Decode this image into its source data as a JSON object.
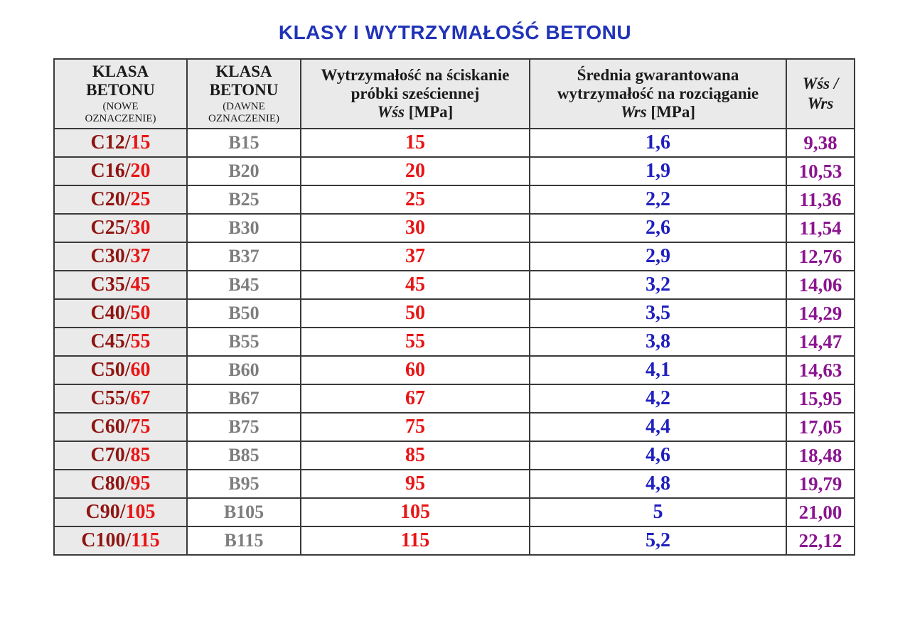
{
  "title": "KLASY I WYTRZYMAŁOŚĆ BETONU",
  "colors": {
    "title_blue": "#2133b8",
    "class_new_dark": "#8e1512",
    "value_red": "#e81414",
    "class_old_gray": "#7e7e7e",
    "value_blue": "#2020bf",
    "value_purple": "#8b1590",
    "header_bg": "#eaeaea",
    "grid_line": "#3a3a3a"
  },
  "table": {
    "headers": {
      "class_new": {
        "title": "KLASA BETONU",
        "subtitle": "(NOWE OZNACZENIE)"
      },
      "class_old": {
        "title": "KLASA BETONU",
        "subtitle": "(DAWNE OZNACZENIE)"
      },
      "wss": {
        "title": "Wytrzymałość na ściskanie próbki sześciennej",
        "symbol": "Wśs",
        "unit": "[MPa]"
      },
      "wrs": {
        "title": "Średnia gwarantowana wytrzymałość na rozciąganie",
        "symbol": "Wrs",
        "unit": "[MPa]"
      },
      "ratio": {
        "line1": "Wśs /",
        "line2": "Wrs"
      }
    },
    "rows": [
      {
        "new_prefix": "C12/",
        "new_suffix": "15",
        "old": "B15",
        "wss": "15",
        "wrs": "1,6",
        "ratio": "9,38"
      },
      {
        "new_prefix": "C16/",
        "new_suffix": "20",
        "old": "B20",
        "wss": "20",
        "wrs": "1,9",
        "ratio": "10,53"
      },
      {
        "new_prefix": "C20/",
        "new_suffix": "25",
        "old": "B25",
        "wss": "25",
        "wrs": "2,2",
        "ratio": "11,36"
      },
      {
        "new_prefix": "C25/",
        "new_suffix": "30",
        "old": "B30",
        "wss": "30",
        "wrs": "2,6",
        "ratio": "11,54"
      },
      {
        "new_prefix": "C30/",
        "new_suffix": "37",
        "old": "B37",
        "wss": "37",
        "wrs": "2,9",
        "ratio": "12,76"
      },
      {
        "new_prefix": "C35/",
        "new_suffix": "45",
        "old": "B45",
        "wss": "45",
        "wrs": "3,2",
        "ratio": "14,06"
      },
      {
        "new_prefix": "C40/",
        "new_suffix": "50",
        "old": "B50",
        "wss": "50",
        "wrs": "3,5",
        "ratio": "14,29"
      },
      {
        "new_prefix": "C45/",
        "new_suffix": "55",
        "old": "B55",
        "wss": "55",
        "wrs": "3,8",
        "ratio": "14,47"
      },
      {
        "new_prefix": "C50/",
        "new_suffix": "60",
        "old": "B60",
        "wss": "60",
        "wrs": "4,1",
        "ratio": "14,63"
      },
      {
        "new_prefix": "C55/",
        "new_suffix": "67",
        "old": "B67",
        "wss": "67",
        "wrs": "4,2",
        "ratio": "15,95"
      },
      {
        "new_prefix": "C60/",
        "new_suffix": "75",
        "old": "B75",
        "wss": "75",
        "wrs": "4,4",
        "ratio": "17,05"
      },
      {
        "new_prefix": "C70/",
        "new_suffix": "85",
        "old": "B85",
        "wss": "85",
        "wrs": "4,6",
        "ratio": "18,48"
      },
      {
        "new_prefix": "C80/",
        "new_suffix": "95",
        "old": "B95",
        "wss": "95",
        "wrs": "4,8",
        "ratio": "19,79"
      },
      {
        "new_prefix": "C90/",
        "new_suffix": "105",
        "old": "B105",
        "wss": "105",
        "wrs": "5",
        "ratio": "21,00"
      },
      {
        "new_prefix": "C100/",
        "new_suffix": "115",
        "old": "B115",
        "wss": "115",
        "wrs": "5,2",
        "ratio": "22,12"
      }
    ]
  }
}
